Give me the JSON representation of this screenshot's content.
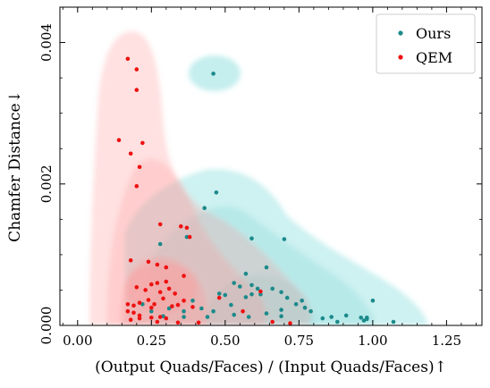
{
  "chart_data": {
    "type": "scatter",
    "xlabel": "(Output Quads/Faces) / (Input Quads/Faces)↑",
    "ylabel": "Chamfer Distance↓",
    "xlim": [
      -0.06,
      1.37
    ],
    "ylim": [
      0.0,
      0.0045
    ],
    "xticks": [
      "0.00",
      "0.25",
      "0.50",
      "0.75",
      "1.00",
      "1.25"
    ],
    "yticks": [
      "0.000",
      "0.002",
      "0.004"
    ],
    "legend_position": "top-right",
    "grid": false,
    "colors": {
      "ours": "#1b8a8a",
      "qem": "#ee1111",
      "ours_fill": "#7fd9d9",
      "qem_fill": "#ff9a9a"
    },
    "series": [
      {
        "name": "Ours",
        "color": "#1b8a8a",
        "points": [
          [
            0.46,
            0.00356
          ],
          [
            0.47,
            0.00188
          ],
          [
            0.43,
            0.00166
          ],
          [
            0.37,
            0.00125
          ],
          [
            0.28,
            0.00115
          ],
          [
            0.59,
            0.00123
          ],
          [
            0.7,
            0.00122
          ],
          [
            0.64,
            0.00082
          ],
          [
            0.57,
            0.00073
          ],
          [
            0.53,
            0.0006
          ],
          [
            0.59,
            0.00057
          ],
          [
            0.55,
            0.00055
          ],
          [
            0.61,
            0.00052
          ],
          [
            0.66,
            0.00052
          ],
          [
            0.69,
            0.00047
          ],
          [
            0.62,
            0.00044
          ],
          [
            0.48,
            0.00045
          ],
          [
            0.5,
            0.00043
          ],
          [
            0.57,
            0.0004
          ],
          [
            0.59,
            0.00044
          ],
          [
            0.71,
            0.00039
          ],
          [
            0.76,
            0.00035
          ],
          [
            0.74,
            0.0003
          ],
          [
            0.77,
            0.00025
          ],
          [
            0.52,
            0.00029
          ],
          [
            0.39,
            0.00035
          ],
          [
            0.36,
            0.0002
          ],
          [
            0.42,
            0.00024
          ],
          [
            0.46,
            0.0002
          ],
          [
            0.53,
            0.00015
          ],
          [
            0.31,
            0.00024
          ],
          [
            0.22,
            0.0003
          ],
          [
            0.25,
            0.0002
          ],
          [
            0.64,
            0.00017
          ],
          [
            0.69,
            0.00022
          ],
          [
            0.79,
            0.0002
          ],
          [
            0.86,
            0.00012
          ],
          [
            0.91,
            0.00014
          ],
          [
            0.96,
            0.00011
          ],
          [
            0.98,
            9e-05
          ],
          [
            0.98,
            0.00011
          ],
          [
            0.97,
            7e-05
          ],
          [
            1.07,
            5e-05
          ],
          [
            0.88,
            5e-05
          ],
          [
            0.83,
            0.0001
          ],
          [
            1.0,
            0.00035
          ],
          [
            0.69,
            0.00013
          ],
          [
            0.58,
            0.00012
          ],
          [
            0.44,
            0.00012
          ],
          [
            0.36,
            0.00012
          ],
          [
            0.29,
            0.00013
          ]
        ]
      },
      {
        "name": "QEM",
        "color": "#ee1111",
        "points": [
          [
            0.17,
            0.00377
          ],
          [
            0.2,
            0.00362
          ],
          [
            0.2,
            0.00333
          ],
          [
            0.14,
            0.00262
          ],
          [
            0.22,
            0.00258
          ],
          [
            0.18,
            0.00243
          ],
          [
            0.21,
            0.00224
          ],
          [
            0.2,
            0.00197
          ],
          [
            0.28,
            0.00143
          ],
          [
            0.35,
            0.0014
          ],
          [
            0.37,
            0.00138
          ],
          [
            0.38,
            0.00125
          ],
          [
            0.24,
            0.0009
          ],
          [
            0.3,
            0.00082
          ],
          [
            0.18,
            0.00092
          ],
          [
            0.27,
            0.00086
          ],
          [
            0.36,
            0.0007
          ],
          [
            0.3,
            0.00062
          ],
          [
            0.27,
            0.0006
          ],
          [
            0.25,
            0.00058
          ],
          [
            0.2,
            0.00054
          ],
          [
            0.23,
            0.0005
          ],
          [
            0.28,
            0.00047
          ],
          [
            0.31,
            0.00052
          ],
          [
            0.33,
            0.00045
          ],
          [
            0.36,
            0.00035
          ],
          [
            0.34,
            0.00029
          ],
          [
            0.25,
            0.00025
          ],
          [
            0.21,
            0.00032
          ],
          [
            0.19,
            0.00028
          ],
          [
            0.17,
            0.0003
          ],
          [
            0.24,
            0.00036
          ],
          [
            0.26,
            0.0003
          ],
          [
            0.29,
            0.00038
          ],
          [
            0.32,
            0.00027
          ],
          [
            0.39,
            0.00026
          ],
          [
            0.19,
            0.00018
          ],
          [
            0.17,
            0.0002
          ],
          [
            0.21,
            0.00014
          ],
          [
            0.25,
            0.00011
          ],
          [
            0.28,
            0.00012
          ],
          [
            0.18,
            8e-05
          ],
          [
            0.21,
            0.0001
          ],
          [
            0.27,
            5e-05
          ],
          [
            0.34,
            4e-05
          ],
          [
            0.41,
            4e-05
          ],
          [
            0.72,
            3e-05
          ],
          [
            0.66,
            5e-05
          ],
          [
            0.48,
            0.00039
          ],
          [
            0.62,
            0.00048
          ],
          [
            0.56,
            0.0002
          ],
          [
            0.3,
            0.0001
          ]
        ]
      }
    ]
  }
}
